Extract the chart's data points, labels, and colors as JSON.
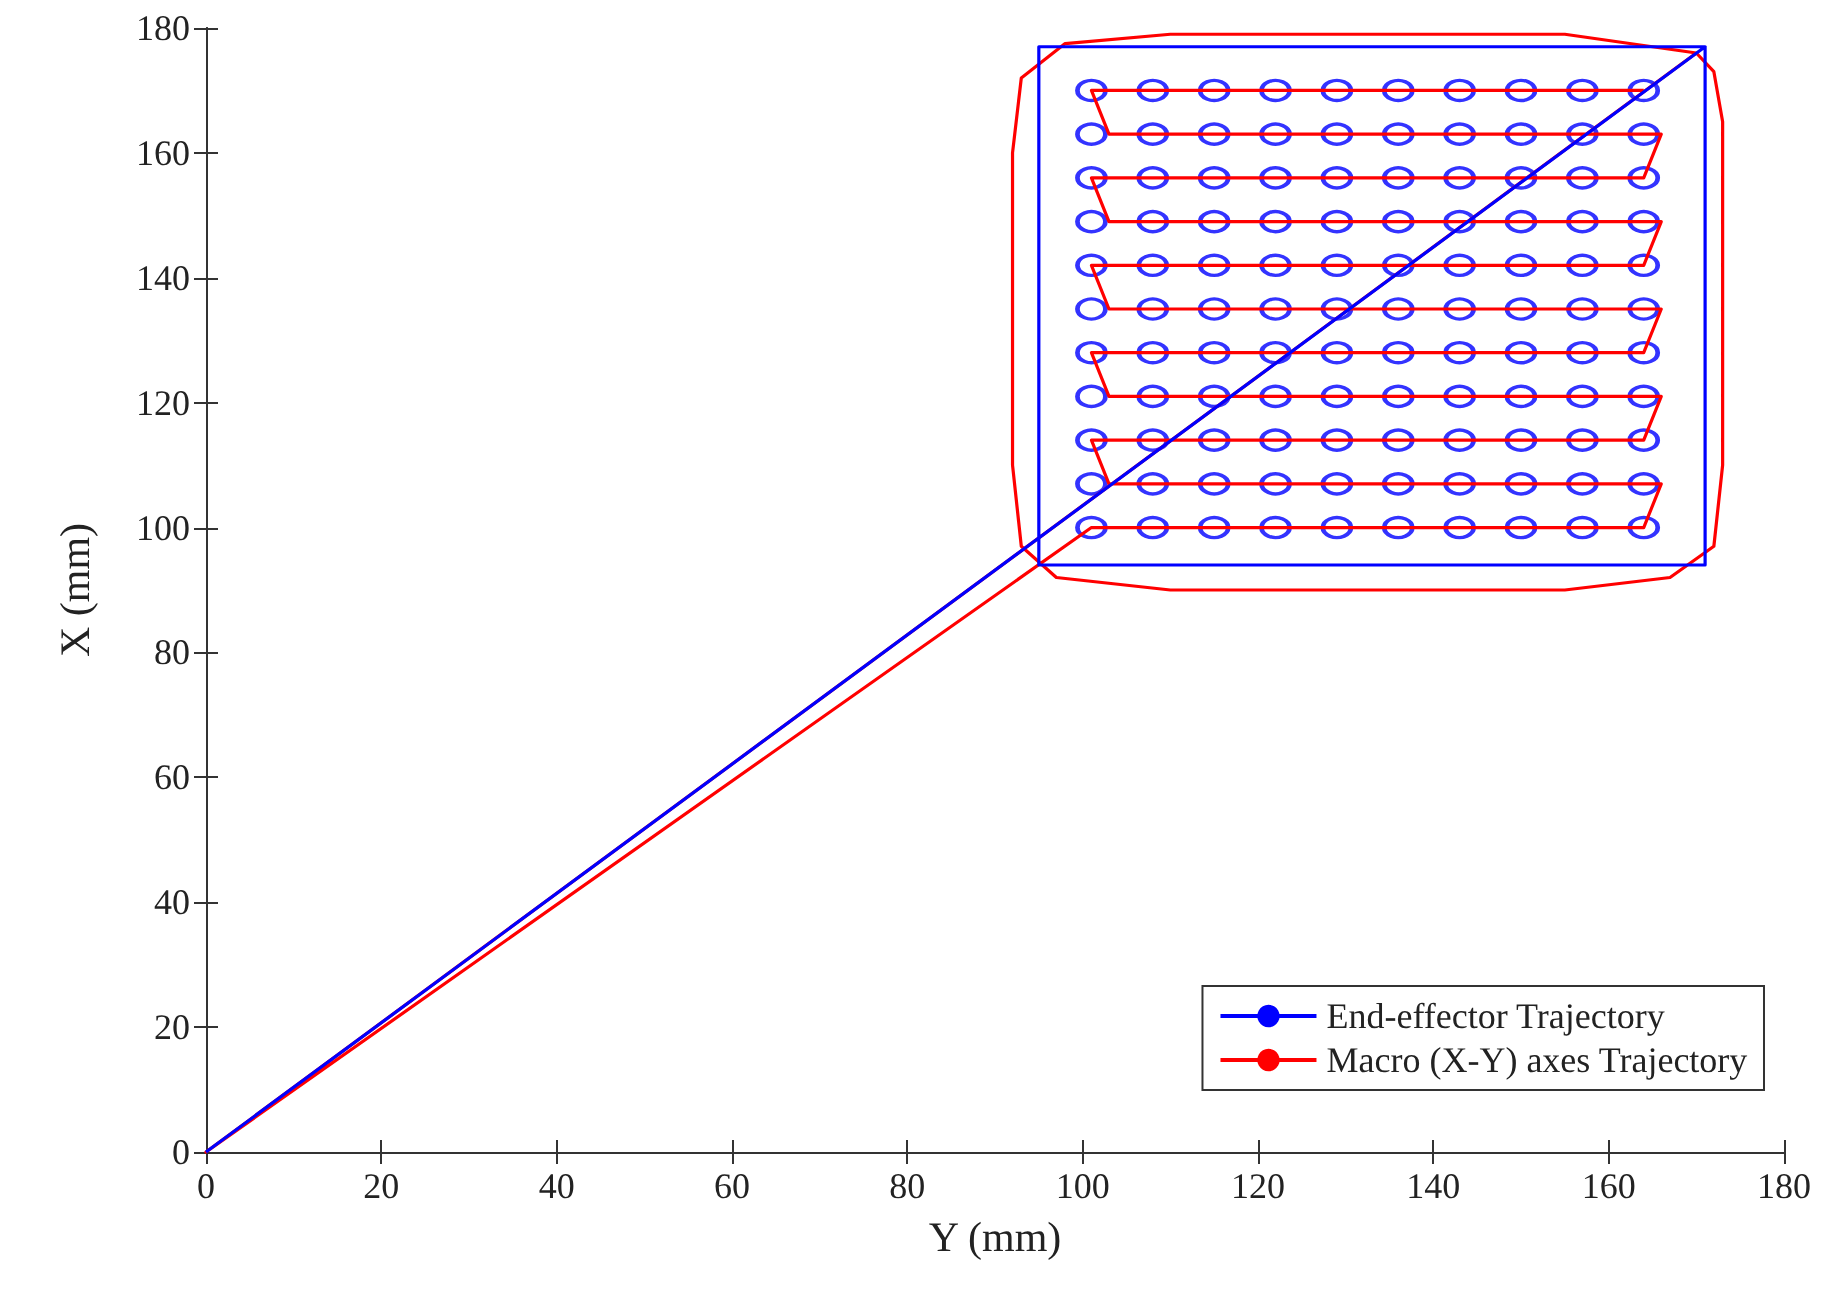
{
  "chart_data": {
    "type": "line",
    "xlabel": "Y (mm)",
    "ylabel": "X (mm)",
    "xlim": [
      0,
      180
    ],
    "ylim": [
      0,
      180
    ],
    "xticks": [
      0,
      20,
      40,
      60,
      80,
      100,
      120,
      140,
      160,
      180
    ],
    "yticks": [
      0,
      20,
      40,
      60,
      80,
      100,
      120,
      140,
      160,
      180
    ],
    "grid": false,
    "legend": "bottom right",
    "line_style": "solid",
    "marker": "none",
    "series": [
      {
        "name": "End-effector Trajectory",
        "color": "#0000ff",
        "x": [
          0,
          171,
          95,
          95,
          171,
          171
        ],
        "values": [
          0,
          177,
          177,
          94,
          94,
          177
        ]
      },
      {
        "name": "Macro (X-Y) axes Trajectory",
        "color": "#ff0000",
        "x": [
          164,
          101,
          103,
          166,
          164,
          101,
          103,
          166,
          164,
          101,
          103,
          166,
          164,
          101,
          103,
          166,
          164,
          101,
          103,
          166,
          164,
          101,
          0,
          170,
          155,
          110,
          98,
          93,
          92,
          92,
          93,
          97,
          110,
          155,
          167,
          172,
          173,
          173,
          172,
          170
        ],
        "values": [
          170,
          170,
          163,
          163,
          156,
          156,
          149,
          149,
          142,
          142,
          135,
          135,
          128,
          128,
          121,
          121,
          114,
          114,
          107,
          107,
          100,
          100,
          0,
          176,
          179,
          179,
          177.5,
          172,
          160,
          110,
          97,
          92,
          90,
          90,
          92,
          97,
          110,
          165,
          173,
          176
        ]
      },
      {
        "type": "scatter",
        "marker": "circle",
        "color": "#0000ff",
        "x": [
          101,
          108,
          115,
          122,
          129,
          136,
          143,
          150,
          157,
          164,
          101,
          108,
          115,
          122,
          129,
          136,
          143,
          150,
          157,
          164,
          101,
          108,
          115,
          122,
          129,
          136,
          143,
          150,
          157,
          164,
          101,
          108,
          115,
          122,
          129,
          136,
          143,
          150,
          157,
          164,
          101,
          108,
          115,
          122,
          129,
          136,
          143,
          150,
          157,
          164,
          101,
          108,
          115,
          122,
          129,
          136,
          143,
          150,
          157,
          164,
          101,
          108,
          115,
          122,
          129,
          136,
          143,
          150,
          157,
          164,
          101,
          108,
          115,
          122,
          129,
          136,
          143,
          150,
          157,
          164,
          101,
          108,
          115,
          122,
          129,
          136,
          143,
          150,
          157,
          164,
          101,
          108,
          115,
          122,
          129,
          136,
          143,
          150,
          157,
          164,
          101,
          108,
          115,
          122,
          129,
          136,
          143,
          150,
          157,
          164
        ],
        "values": [
          100,
          100,
          100,
          100,
          100,
          100,
          100,
          100,
          100,
          100,
          107,
          107,
          107,
          107,
          107,
          107,
          107,
          107,
          107,
          107,
          114,
          114,
          114,
          114,
          114,
          114,
          114,
          114,
          114,
          114,
          121,
          121,
          121,
          121,
          121,
          121,
          121,
          121,
          121,
          121,
          128,
          128,
          128,
          128,
          128,
          128,
          128,
          128,
          128,
          128,
          135,
          135,
          135,
          135,
          135,
          135,
          135,
          135,
          135,
          135,
          142,
          142,
          142,
          142,
          142,
          142,
          142,
          142,
          142,
          142,
          149,
          149,
          149,
          149,
          149,
          149,
          149,
          149,
          149,
          149,
          156,
          156,
          156,
          156,
          156,
          156,
          156,
          156,
          156,
          156,
          163,
          163,
          163,
          163,
          163,
          163,
          163,
          163,
          163,
          163,
          170,
          170,
          170,
          170,
          170,
          170,
          170,
          170,
          170,
          170
        ]
      }
    ]
  }
}
